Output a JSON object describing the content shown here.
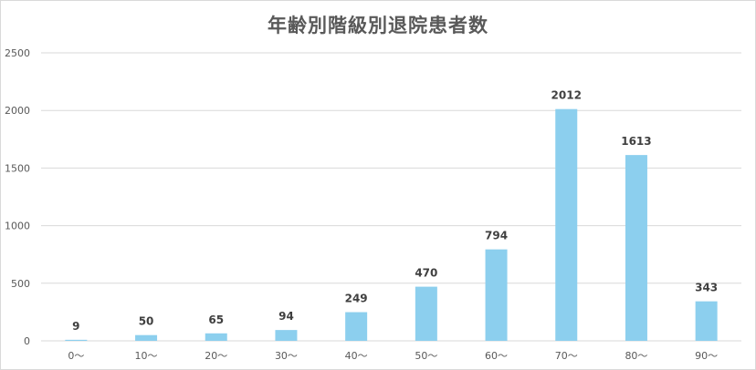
{
  "chart_data": {
    "type": "bar",
    "title": "年齢別階級別退院患者数",
    "xlabel": "",
    "ylabel": "",
    "categories": [
      "0～",
      "10～",
      "20～",
      "30～",
      "40～",
      "50～",
      "60～",
      "70～",
      "80～",
      "90～"
    ],
    "values": [
      9,
      50,
      65,
      94,
      249,
      470,
      794,
      2012,
      1613,
      343
    ],
    "ylim": [
      0,
      2500
    ],
    "yticks": [
      0,
      500,
      1000,
      1500,
      2000,
      2500
    ],
    "grid": true,
    "legend": "none",
    "bar_color": "#8ccfee",
    "grid_color": "#d9d9d9"
  }
}
